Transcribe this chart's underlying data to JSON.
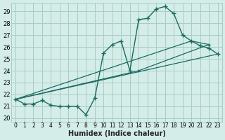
{
  "xlabel": "Humidex (Indice chaleur)",
  "bg_color": "#d4ede8",
  "grid_color": "#aacbc4",
  "line_color": "#1a6b60",
  "xlim": [
    -0.5,
    23.5
  ],
  "ylim": [
    19.7,
    29.7
  ],
  "xticks": [
    0,
    1,
    2,
    3,
    4,
    5,
    6,
    7,
    8,
    9,
    10,
    11,
    12,
    13,
    14,
    15,
    16,
    17,
    18,
    19,
    20,
    21,
    22,
    23
  ],
  "yticks": [
    20,
    21,
    22,
    23,
    24,
    25,
    26,
    27,
    28,
    29
  ],
  "curve1_x": [
    0,
    1,
    2,
    3,
    4,
    5,
    6,
    7,
    8,
    9,
    10,
    11,
    12,
    13,
    14,
    15,
    16,
    17,
    18,
    19,
    20,
    21,
    22,
    23
  ],
  "curve1_y": [
    21.6,
    21.2,
    21.2,
    21.5,
    21.1,
    21.0,
    21.0,
    21.0,
    20.3,
    21.7,
    25.5,
    26.2,
    26.5,
    24.0,
    28.3,
    28.4,
    29.2,
    29.4,
    28.8,
    27.0,
    26.5,
    26.1,
    25.9,
    25.4
  ],
  "line1_x": [
    0,
    23
  ],
  "line1_y": [
    21.6,
    25.4
  ],
  "line2_x": [
    0,
    14,
    22
  ],
  "line2_y": [
    21.6,
    24.0,
    26.2
  ],
  "line3_x": [
    0,
    20,
    22
  ],
  "line3_y": [
    21.6,
    26.5,
    26.2
  ]
}
